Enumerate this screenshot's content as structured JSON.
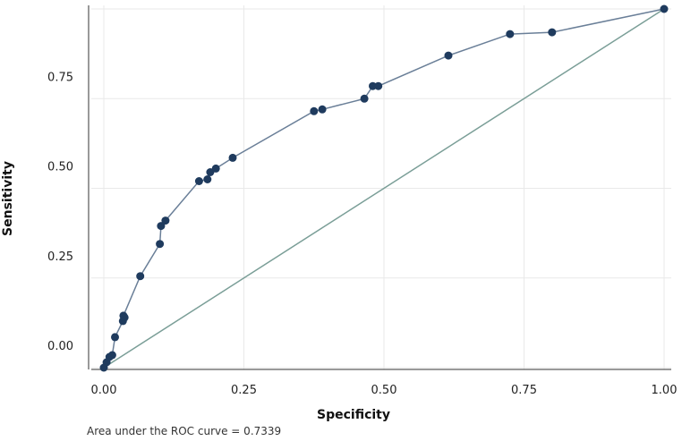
{
  "chart_data": {
    "type": "line",
    "title": "",
    "xlabel": "Specificity",
    "ylabel": "Sensitivity",
    "footnote": "Area under the ROC curve = 0.7339",
    "x_ticks": [
      {
        "value": 0.0,
        "label": "0.00"
      },
      {
        "value": 0.25,
        "label": "0.25"
      },
      {
        "value": 0.5,
        "label": "0.50"
      },
      {
        "value": 0.75,
        "label": "0.75"
      },
      {
        "value": 1.0,
        "label": "1.00"
      }
    ],
    "y_ticks": [
      {
        "value": 0.0,
        "label": "0.00"
      },
      {
        "value": 0.25,
        "label": "0.25"
      },
      {
        "value": 0.5,
        "label": "0.50"
      },
      {
        "value": 0.75,
        "label": "0.75"
      },
      {
        "value": 1.0,
        "label": "1.00"
      }
    ],
    "xlim": [
      0,
      1
    ],
    "ylim": [
      0,
      1
    ],
    "grid": true,
    "colors": {
      "roc_line": "#6a7f98",
      "roc_marker": "#1f3b5e",
      "reference_line": "#7a9e97",
      "gridline": "#e9e9e9"
    },
    "series": [
      {
        "points": [
          {
            "x": 0.0,
            "y": 0.0
          },
          {
            "x": 0.005,
            "y": 0.015
          },
          {
            "x": 0.01,
            "y": 0.03
          },
          {
            "x": 0.015,
            "y": 0.035
          },
          {
            "x": 0.02,
            "y": 0.085
          },
          {
            "x": 0.034,
            "y": 0.13
          },
          {
            "x": 0.037,
            "y": 0.14
          },
          {
            "x": 0.035,
            "y": 0.145
          },
          {
            "x": 0.065,
            "y": 0.255
          },
          {
            "x": 0.1,
            "y": 0.345
          },
          {
            "x": 0.102,
            "y": 0.395
          },
          {
            "x": 0.11,
            "y": 0.41
          },
          {
            "x": 0.17,
            "y": 0.52
          },
          {
            "x": 0.185,
            "y": 0.525
          },
          {
            "x": 0.19,
            "y": 0.545
          },
          {
            "x": 0.2,
            "y": 0.555
          },
          {
            "x": 0.23,
            "y": 0.585
          },
          {
            "x": 0.375,
            "y": 0.715
          },
          {
            "x": 0.39,
            "y": 0.72
          },
          {
            "x": 0.465,
            "y": 0.75
          },
          {
            "x": 0.48,
            "y": 0.785
          },
          {
            "x": 0.49,
            "y": 0.785
          },
          {
            "x": 0.615,
            "y": 0.87
          },
          {
            "x": 0.725,
            "y": 0.93
          },
          {
            "x": 0.8,
            "y": 0.935
          },
          {
            "x": 1.0,
            "y": 1.0
          }
        ]
      }
    ],
    "reference_line": [
      {
        "x": 0.0,
        "y": 0.0
      },
      {
        "x": 1.0,
        "y": 1.0
      }
    ]
  }
}
